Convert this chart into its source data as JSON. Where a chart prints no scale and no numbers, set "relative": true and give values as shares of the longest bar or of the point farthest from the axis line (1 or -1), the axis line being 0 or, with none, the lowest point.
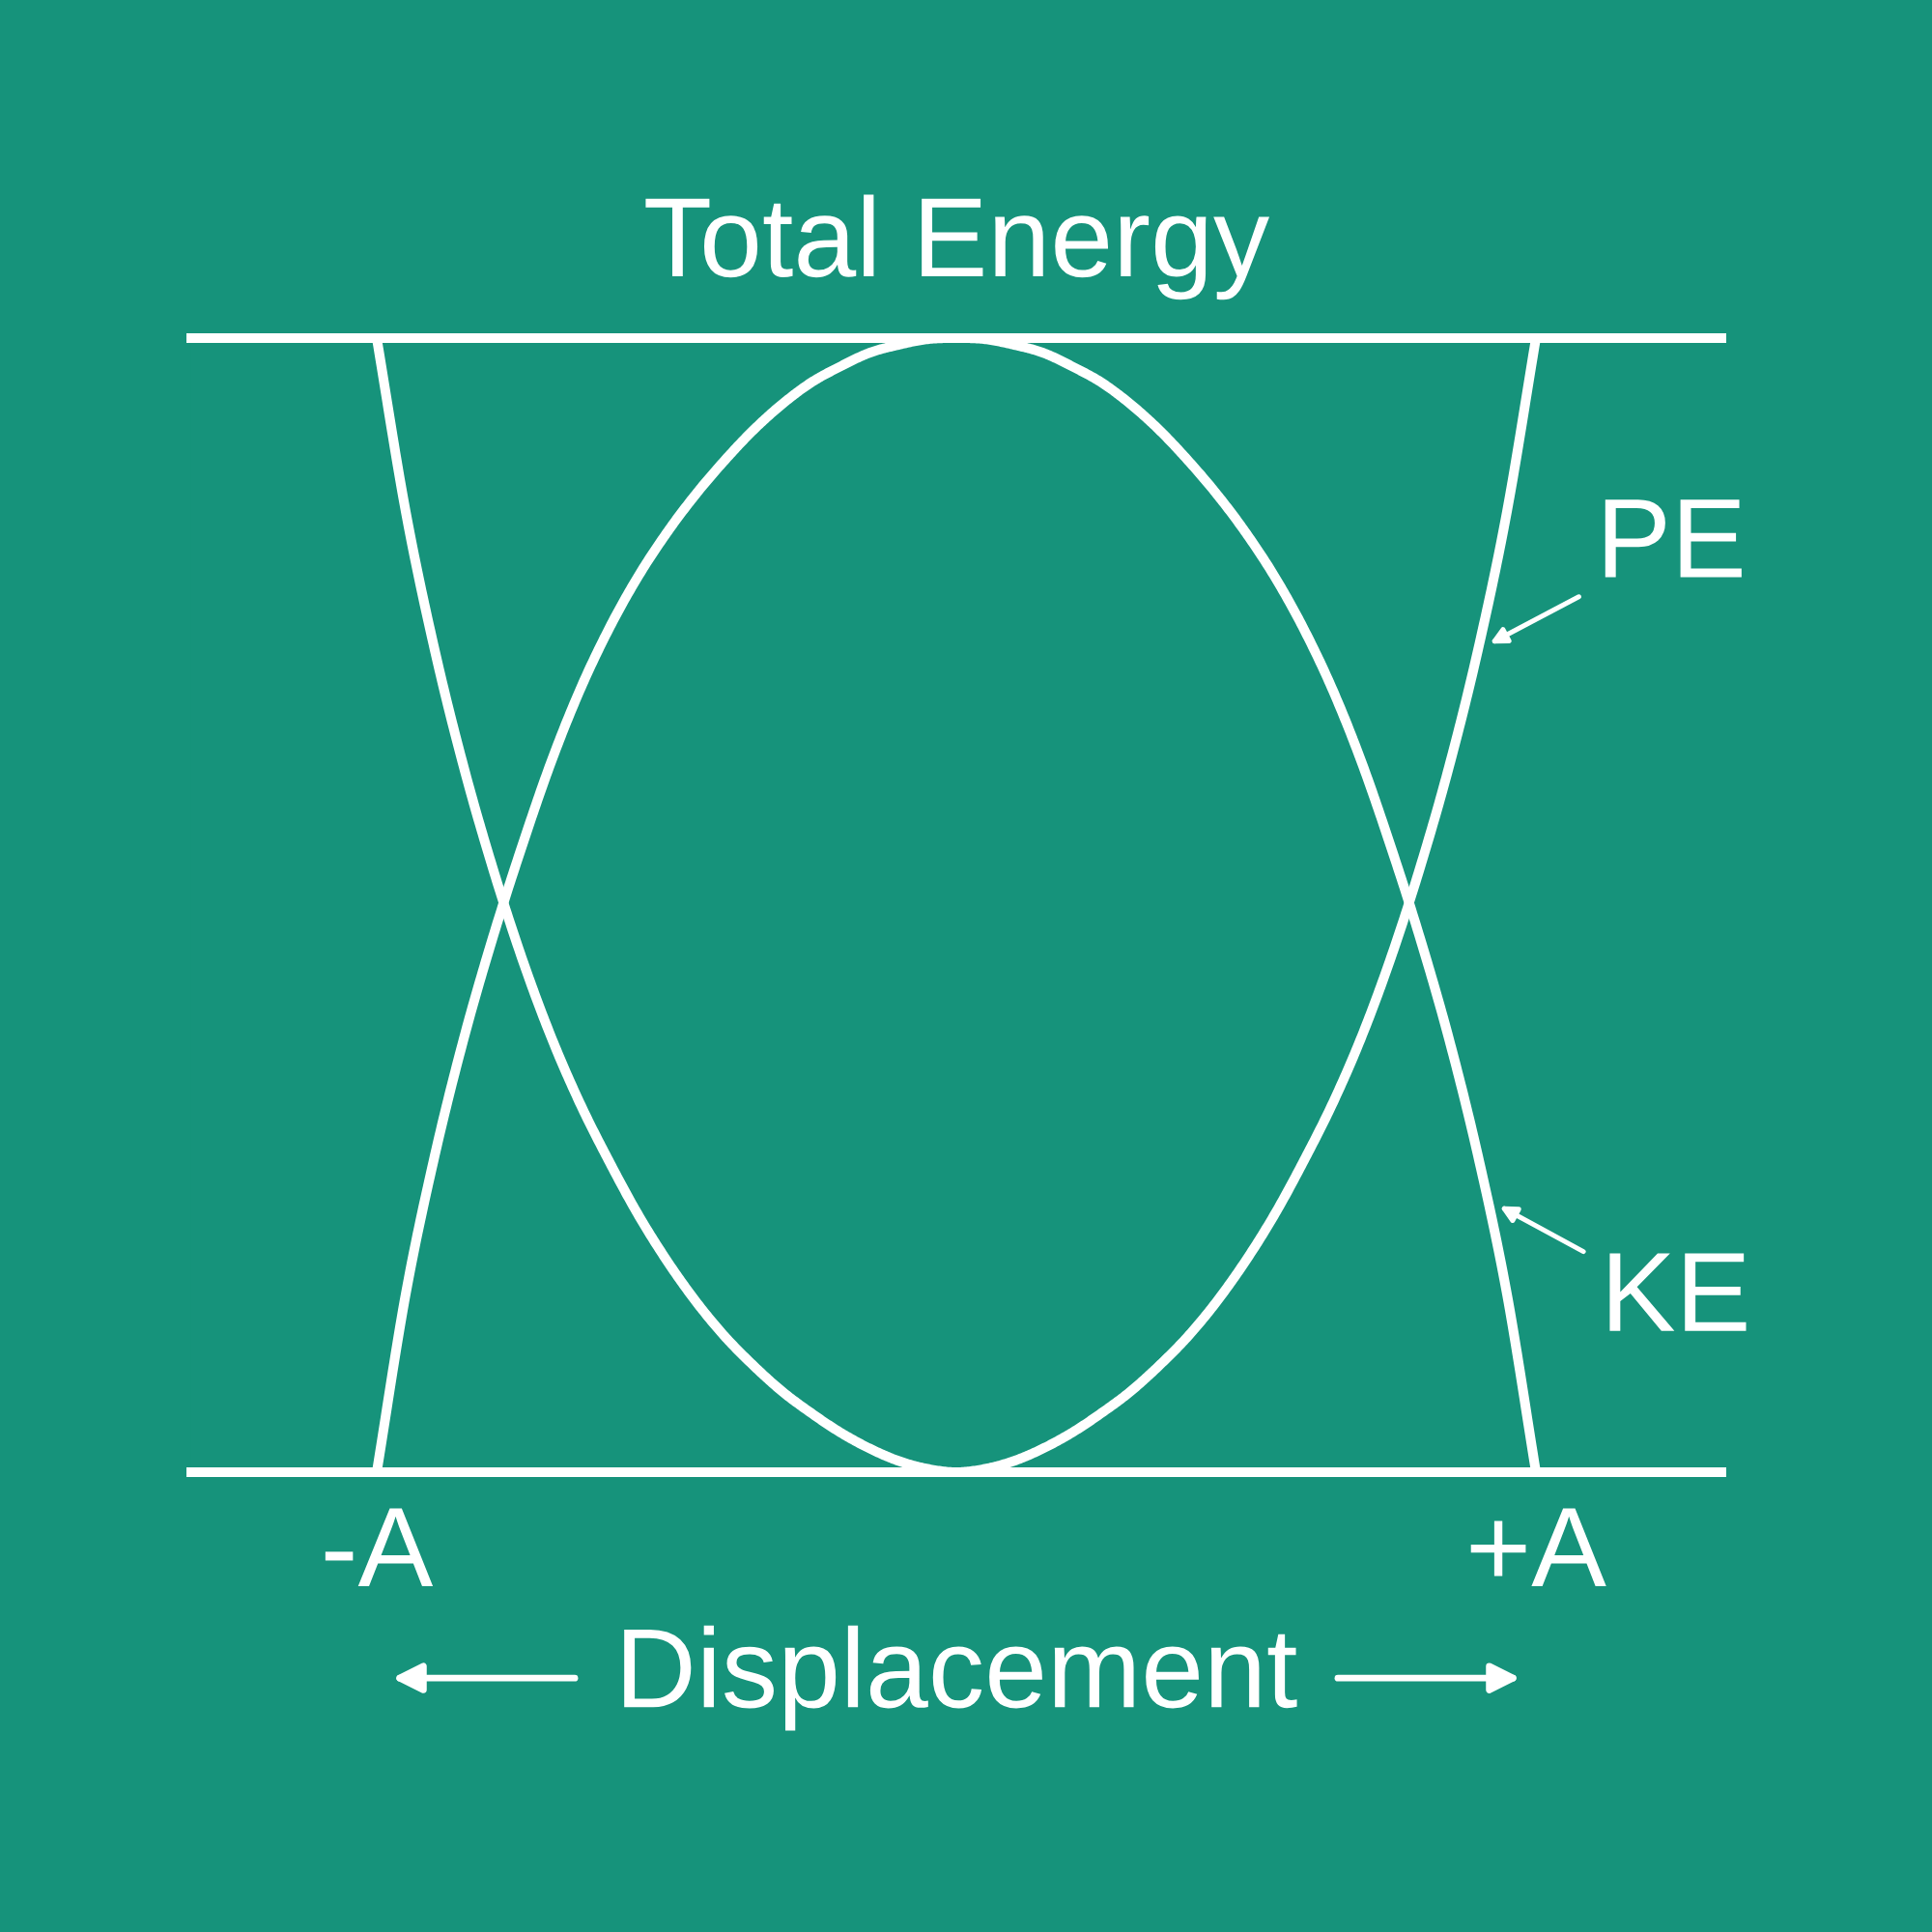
{
  "chart_data": {
    "type": "line",
    "relative": true,
    "xlabel": "Displacement",
    "categories": [
      "-A",
      null,
      null,
      null,
      null,
      null,
      null,
      null,
      null,
      null,
      null,
      null,
      null,
      null,
      null,
      null,
      null,
      null,
      null,
      null,
      null,
      null,
      null,
      null,
      null,
      null,
      null,
      null,
      null,
      null,
      null,
      null,
      null,
      null,
      null,
      null,
      null,
      null,
      null,
      null,
      "+A"
    ],
    "tick_labels": "x",
    "line_style": "solid",
    "series": [
      {
        "name": "PE",
        "color": "#ffffff",
        "values": [
          1,
          0.847,
          0.725,
          0.622,
          0.533,
          0.454,
          0.385,
          0.326,
          0.275,
          0.228,
          0.187,
          0.151,
          0.12,
          0.094,
          0.071,
          0.052,
          0.035,
          0.021,
          0.01,
          0.003,
          0,
          0.003,
          0.01,
          0.021,
          0.035,
          0.052,
          0.071,
          0.094,
          0.12,
          0.151,
          0.187,
          0.228,
          0.275,
          0.326,
          0.385,
          0.454,
          0.533,
          0.622,
          0.725,
          0.847,
          1
        ]
      },
      {
        "name": "KE",
        "color": "#ffffff",
        "values": [
          0,
          0.157,
          0.279,
          0.382,
          0.471,
          0.551,
          0.625,
          0.689,
          0.743,
          0.789,
          0.828,
          0.862,
          0.892,
          0.919,
          0.942,
          0.961,
          0.975,
          0.987,
          0.994,
          0.999,
          1,
          0.999,
          0.994,
          0.987,
          0.975,
          0.961,
          0.942,
          0.919,
          0.892,
          0.862,
          0.828,
          0.789,
          0.743,
          0.689,
          0.625,
          0.551,
          0.471,
          0.382,
          0.279,
          0.157,
          0
        ]
      }
    ],
    "ref_lines": [
      {
        "axis": "y",
        "value": 1,
        "label": "Total Energy",
        "color": "#ffffff"
      }
    ]
  }
}
